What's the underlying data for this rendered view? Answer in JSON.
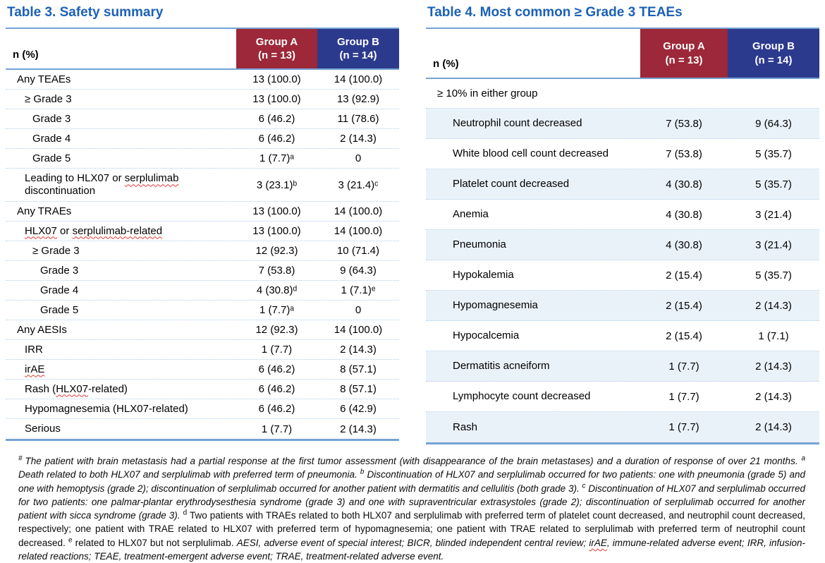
{
  "colors": {
    "title": "#1B61B5",
    "maroon": "#9C2839",
    "navy": "#2C3A8E",
    "rule": "#74A3D4",
    "dot": "#AFCFEA",
    "band": "#EAF2F9",
    "sqcol": "#E53935"
  },
  "table3": {
    "title": "Table 3. Safety summary",
    "col_header": "n (%)",
    "group_a": {
      "name": "Group A",
      "n": "(n = 13)"
    },
    "group_b": {
      "name": "Group B",
      "n": "(n = 14)"
    },
    "rows": [
      {
        "label": "Any TEAEs",
        "indent": 0,
        "a": "13 (100.0)",
        "b": "14 (100.0)"
      },
      {
        "label": "≥ Grade 3",
        "indent": 1,
        "a": "13 (100.0)",
        "b": "13 (92.9)"
      },
      {
        "label": "Grade 3",
        "indent": 2,
        "a": "6 (46.2)",
        "b": "11 (78.6)"
      },
      {
        "label": "Grade 4",
        "indent": 2,
        "a": "6 (46.2)",
        "b": "2 (14.3)"
      },
      {
        "label": "Grade 5",
        "indent": 2,
        "a": "1 (7.7)ᵃ",
        "b": "0"
      },
      {
        "label": [
          {
            "t": "Leading to HLX07 or "
          },
          {
            "t": "serplulimab",
            "sq": true
          },
          {
            "t": " discontinuation"
          }
        ],
        "indent": 1,
        "a": "3 (23.1)ᵇ",
        "b": "3 (21.4)ᶜ",
        "tall": true
      },
      {
        "label": "Any TRAEs",
        "indent": 0,
        "a": "13 (100.0)",
        "b": "14 (100.0)"
      },
      {
        "label": [
          {
            "t": "HLX07",
            "sq": true
          },
          {
            "t": " or "
          },
          {
            "t": "serplulimab-related",
            "sq": true
          }
        ],
        "indent": 1,
        "a": "13 (100.0)",
        "b": "14 (100.0)"
      },
      {
        "label": "≥ Grade 3",
        "indent": 2,
        "a": "12 (92.3)",
        "b": "10 (71.4)"
      },
      {
        "label": "Grade 3",
        "indent": 3,
        "a": "7 (53.8)",
        "b": "9 (64.3)"
      },
      {
        "label": "Grade 4",
        "indent": 3,
        "a": "4 (30.8)ᵈ",
        "b": "1 (7.1)ᵉ"
      },
      {
        "label": "Grade 5",
        "indent": 3,
        "a": "1 (7.7)ᵃ",
        "b": "0"
      },
      {
        "label": "Any AESIs",
        "indent": 0,
        "a": "12 (92.3)",
        "b": "14 (100.0)"
      },
      {
        "label": "IRR",
        "indent": 1,
        "a": "1 (7.7)",
        "b": "2 (14.3)"
      },
      {
        "label": [
          {
            "t": "irAE",
            "sq": true
          }
        ],
        "indent": 1,
        "a": "6 (46.2)",
        "b": "8 (57.1)"
      },
      {
        "label": [
          {
            "t": "Rash ("
          },
          {
            "t": "HLX07",
            "sq": true
          },
          {
            "t": "-related)"
          }
        ],
        "indent": 1,
        "a": "6 (46.2)",
        "b": "8 (57.1)"
      },
      {
        "label": "Hypomagnesemia (HLX07-related)",
        "indent": 1,
        "a": "6 (46.2)",
        "b": "6 (42.9)"
      },
      {
        "label": "Serious",
        "indent": 1,
        "a": "1 (7.7)",
        "b": "2 (14.3)"
      }
    ]
  },
  "table4": {
    "title": "Table 4. Most common ≥ Grade 3 TEAEs",
    "col_header": "n (%)",
    "group_a": {
      "name": "Group A",
      "n": "(n = 13)"
    },
    "group_b": {
      "name": "Group B",
      "n": "(n = 14)"
    },
    "rows": [
      {
        "label": "≥ 10% in either group",
        "indent": 0,
        "section": true
      },
      {
        "label": "Neutrophil count decreased",
        "indent": 1,
        "a": "7 (53.8)",
        "b": "9 (64.3)",
        "shaded": true
      },
      {
        "label": "White blood cell count decreased",
        "indent": 1,
        "a": "7 (53.8)",
        "b": "5 (35.7)"
      },
      {
        "label": "Platelet count decreased",
        "indent": 1,
        "a": "4 (30.8)",
        "b": "5 (35.7)",
        "shaded": true
      },
      {
        "label": "Anemia",
        "indent": 1,
        "a": "4 (30.8)",
        "b": "3 (21.4)"
      },
      {
        "label": "Pneumonia",
        "indent": 1,
        "a": "4 (30.8)",
        "b": "3 (21.4)",
        "shaded": true
      },
      {
        "label": "Hypokalemia",
        "indent": 1,
        "a": "2 (15.4)",
        "b": "5 (35.7)"
      },
      {
        "label": "Hypomagnesemia",
        "indent": 1,
        "a": "2 (15.4)",
        "b": "2 (14.3)",
        "shaded": true
      },
      {
        "label": "Hypocalcemia",
        "indent": 1,
        "a": "2 (15.4)",
        "b": "1 (7.1)"
      },
      {
        "label": "Dermatitis acneiform",
        "indent": 1,
        "a": "1 (7.7)",
        "b": "2 (14.3)",
        "shaded": true
      },
      {
        "label": "Lymphocyte count decreased",
        "indent": 1,
        "a": "1 (7.7)",
        "b": "2 (14.3)"
      },
      {
        "label": "Rash",
        "indent": 1,
        "a": "1 (7.7)",
        "b": "2 (14.3)",
        "shaded": true
      }
    ]
  },
  "footnote": {
    "segments": [
      {
        "t": "# ",
        "sup": true,
        "it": true
      },
      {
        "t": "The patient with brain metastasis had a partial response at the first tumor assessment (with disappearance of the brain metastases) and a duration of response of over 21 months. ",
        "it": true
      },
      {
        "t": "a",
        "sup": true,
        "it": true
      },
      {
        "t": " Death related to both HLX07 and serplulimab with preferred term of pneumonia. ",
        "it": true
      },
      {
        "t": "b",
        "sup": true,
        "it": true
      },
      {
        "t": " Discontinuation of HLX07 and serplulimab occurred for two patients: one with pneumonia (grade 5) and one with hemoptysis (grade 2); discontinuation of serplulimab occurred for another patient with dermatitis and cellulitis (both grade 3). ",
        "it": true
      },
      {
        "t": "c",
        "sup": true,
        "it": true
      },
      {
        "t": " Discontinuation of HLX07 and serplulimab occurred for two patients: one palmar-plantar erythrodysesthesia syndrome (grade 3) and one with supraventricular extrasystoles (grade 2); discontinuation of serplulimab occurred for another patient with sicca syndrome (grade 3). ",
        "it": true
      },
      {
        "t": "d",
        "sup": true,
        "it": false
      },
      {
        "t": " Two patients with TRAEs related to both HLX07 and serplulimab with preferred term of platelet count decreased, and neutrophil count decreased, respectively; one patient with TRAE related to HLX07 with preferred term of hypomagnesemia; one patient with TRAE related to serplulimab with preferred term of neutrophil count decreased. ",
        "it": false
      },
      {
        "t": "e",
        "sup": true,
        "it": false
      },
      {
        "t": " related to HLX07 but not serplulimab. ",
        "it": false
      },
      {
        "t": "AESI, adverse event of special interest; BICR, blinded independent central review; ",
        "it": true
      },
      {
        "t": "irAE",
        "it": true,
        "sq": true
      },
      {
        "t": ", immune-related adverse event; IRR, infusion-related reactions; TEAE, treatment-emergent adverse event; TRAE, treatment-related adverse event.",
        "it": true
      }
    ]
  }
}
